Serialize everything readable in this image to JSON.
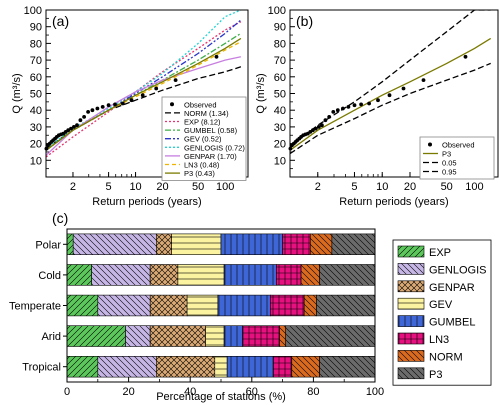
{
  "chart_data": [
    {
      "panel": "(a)",
      "type": "line",
      "xscale": "log",
      "xlim": [
        1,
        180
      ],
      "ylim": [
        0,
        100
      ],
      "xlabel": "Return periods (years)",
      "ylabel": "Q (m³/s)",
      "xticks": [
        2,
        5,
        10,
        20,
        50,
        100
      ],
      "yticks": [
        10,
        20,
        30,
        40,
        50,
        60,
        70,
        80,
        90,
        100
      ],
      "grid": false,
      "legend_position": "bottom-right",
      "observed": {
        "name": "Observed",
        "x": [
          1.01,
          1.05,
          1.1,
          1.15,
          1.2,
          1.26,
          1.32,
          1.39,
          1.47,
          1.56,
          1.66,
          1.77,
          1.9,
          2.05,
          2.22,
          2.42,
          2.66,
          2.95,
          3.3,
          3.75,
          4.3,
          5.0,
          5.9,
          7.2,
          9.0,
          12.0,
          17.0,
          28.0,
          80.0
        ],
        "y": [
          17,
          19,
          20,
          21,
          22,
          23,
          24,
          25,
          25.5,
          26,
          27,
          28,
          29,
          30,
          31,
          34,
          36,
          39,
          40,
          41,
          42,
          43,
          43.5,
          44,
          46,
          49,
          53,
          58,
          72
        ]
      },
      "series": [
        {
          "name": "NORM (1.34)",
          "color": "#000000",
          "dash": "6,3",
          "x": [
            1,
            2,
            5,
            10,
            20,
            50,
            100,
            150
          ],
          "y": [
            17,
            28,
            40,
            46,
            52,
            59,
            63,
            66
          ]
        },
        {
          "name": "EXP (8.12)",
          "color": "#e8336d",
          "dash": "2,2",
          "x": [
            1,
            2,
            5,
            10,
            20,
            50,
            100,
            150
          ],
          "y": [
            12,
            24,
            39,
            51,
            63,
            77,
            88,
            93
          ]
        },
        {
          "name": "GUMBEL (0.58)",
          "color": "#3fae49",
          "dash": "6,2,2,2",
          "x": [
            1,
            2,
            5,
            10,
            20,
            50,
            100,
            150
          ],
          "y": [
            16,
            28,
            40,
            49,
            58,
            70,
            80,
            86
          ]
        },
        {
          "name": "GEV (0.52)",
          "color": "#2b36c9",
          "dash": "6,2,2,2,2,2",
          "x": [
            1,
            2,
            5,
            10,
            20,
            50,
            100,
            150
          ],
          "y": [
            16,
            28,
            40,
            50,
            60,
            74,
            86,
            94
          ]
        },
        {
          "name": "GENLOGIS (0.72)",
          "color": "#22d3d3",
          "dash": "2,2",
          "x": [
            1,
            2,
            5,
            10,
            20,
            50,
            100,
            150
          ],
          "y": [
            17,
            29,
            41,
            51,
            62,
            80,
            96,
            100
          ]
        },
        {
          "name": "GENPAR (1.70)",
          "color": "#c77ee0",
          "dash": "",
          "x": [
            1,
            2,
            5,
            10,
            20,
            50,
            100,
            150
          ],
          "y": [
            13,
            28,
            42,
            51,
            58,
            65,
            70,
            72
          ]
        },
        {
          "name": "LN3 (0.48)",
          "color": "#f0b400",
          "dash": "4,3",
          "x": [
            1,
            2,
            5,
            10,
            20,
            50,
            100,
            150
          ],
          "y": [
            16,
            28,
            40,
            48,
            56,
            67,
            76,
            81
          ]
        },
        {
          "name": "P3 (0.43)",
          "color": "#7a7a00",
          "dash": "",
          "x": [
            1,
            2,
            5,
            10,
            20,
            50,
            100,
            150
          ],
          "y": [
            16,
            28,
            40,
            49,
            57,
            68,
            77,
            83
          ]
        }
      ]
    },
    {
      "panel": "(b)",
      "type": "line",
      "xscale": "log",
      "xlim": [
        1,
        180
      ],
      "ylim": [
        0,
        100
      ],
      "xlabel": "Return periods (years)",
      "ylabel": "Q (m³/s)",
      "xticks": [
        2,
        5,
        10,
        20,
        50,
        100
      ],
      "yticks": [
        10,
        20,
        30,
        40,
        50,
        60,
        70,
        80,
        90,
        100
      ],
      "grid": false,
      "legend_position": "bottom-right",
      "observed": {
        "name": "Observed",
        "x": [
          1.01,
          1.05,
          1.1,
          1.15,
          1.2,
          1.26,
          1.32,
          1.39,
          1.47,
          1.56,
          1.66,
          1.77,
          1.9,
          2.05,
          2.22,
          2.42,
          2.66,
          2.95,
          3.3,
          3.75,
          4.3,
          5.0,
          5.9,
          7.2,
          9.0,
          12.0,
          17.0,
          28.0,
          80.0
        ],
        "y": [
          17,
          19,
          20,
          21,
          22,
          23,
          24,
          25,
          25.5,
          26,
          27,
          28,
          29,
          30,
          31,
          34,
          36,
          39,
          40,
          41,
          42,
          43,
          43.5,
          44,
          46,
          49,
          53,
          58,
          72
        ]
      },
      "series": [
        {
          "name": "P3",
          "color": "#7a7a00",
          "dash": "",
          "x": [
            1,
            2,
            5,
            10,
            20,
            50,
            100,
            150
          ],
          "y": [
            16,
            28,
            40,
            49,
            57,
            68,
            77,
            83
          ]
        },
        {
          "name": "0.05",
          "color": "#000000",
          "dash": "6,3",
          "x": [
            1,
            2,
            5,
            10,
            20,
            50,
            100,
            150
          ],
          "y": [
            14,
            25,
            35,
            43,
            50,
            58,
            64,
            68
          ]
        },
        {
          "name": "0.95",
          "color": "#000000",
          "dash": "6,3",
          "x": [
            1,
            2,
            5,
            10,
            20,
            50,
            100,
            150
          ],
          "y": [
            18,
            31,
            45,
            57,
            70,
            87,
            100,
            100
          ]
        }
      ]
    },
    {
      "panel": "(c)",
      "type": "bar",
      "orientation": "horizontal",
      "stacked": true,
      "xlabel": "Percentage of stations (%)",
      "xlim": [
        0,
        100
      ],
      "xticks": [
        0,
        20,
        40,
        60,
        80,
        100
      ],
      "legend_position": "right",
      "categories": [
        "Polar",
        "Cold",
        "Temperate",
        "Arid",
        "Tropical"
      ],
      "series": [
        {
          "name": "EXP",
          "color": "#5cc85c",
          "hatch": "diag",
          "values": [
            2,
            8,
            10,
            19,
            10
          ]
        },
        {
          "name": "GENLOGIS",
          "color": "#c6b6e6",
          "hatch": "back",
          "values": [
            27,
            19,
            17,
            8,
            19
          ]
        },
        {
          "name": "GENPAR",
          "color": "#d9a873",
          "hatch": "cross",
          "values": [
            5,
            9,
            12,
            18,
            19
          ]
        },
        {
          "name": "GEV",
          "color": "#fbf3a0",
          "hatch": "horiz",
          "values": [
            16,
            15,
            10,
            6,
            4
          ]
        },
        {
          "name": "GUMBEL",
          "color": "#3f66d6",
          "hatch": "vert",
          "values": [
            20,
            17,
            17,
            6,
            15
          ]
        },
        {
          "name": "LN3",
          "color": "#e6117f",
          "hatch": "grid",
          "values": [
            9,
            8,
            11,
            12,
            6
          ]
        },
        {
          "name": "NORM",
          "color": "#d96a1e",
          "hatch": "back",
          "values": [
            7,
            6,
            4,
            2,
            9
          ]
        },
        {
          "name": "P3",
          "color": "#6b6b6b",
          "hatch": "back",
          "values": [
            14,
            18,
            19,
            29,
            18
          ]
        }
      ]
    }
  ]
}
